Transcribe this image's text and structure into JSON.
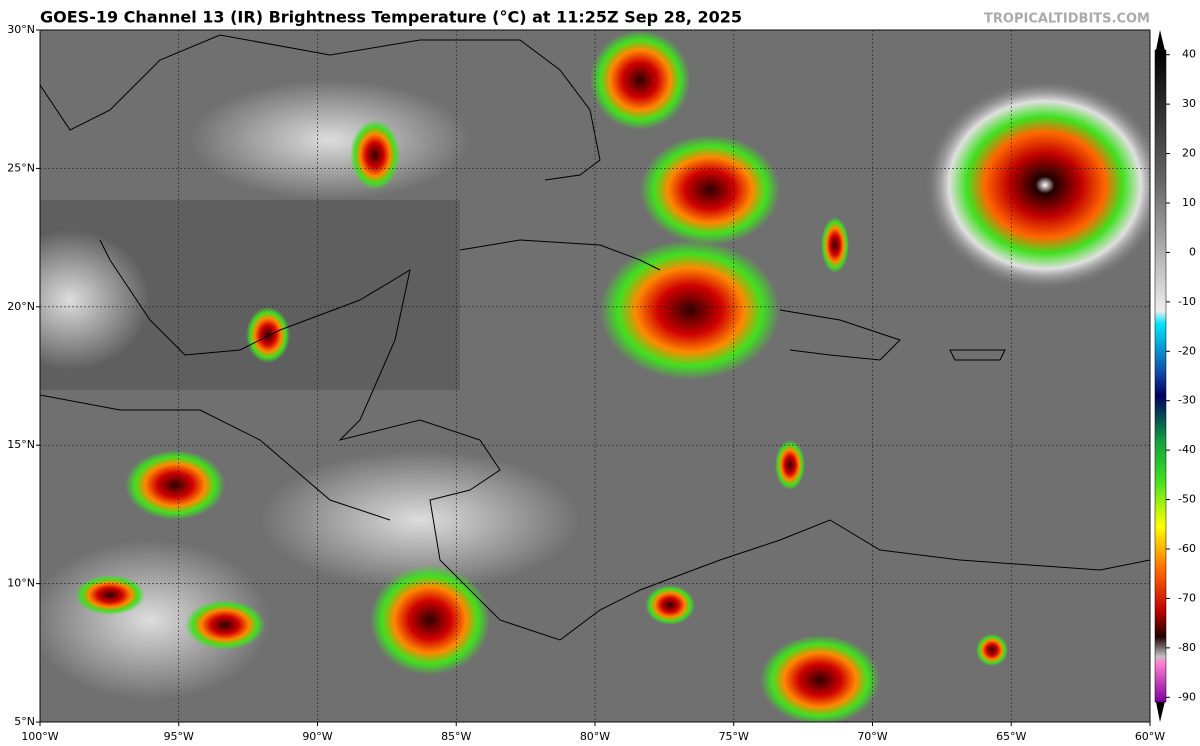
{
  "map": {
    "title": "GOES-19 Channel 13 (IR) Brightness Temperature (°C) at 11:25Z Sep 28, 2025",
    "watermark": "TROPICALTIDBITS.COM",
    "xlim": [
      -100,
      -60
    ],
    "ylim": [
      5,
      30
    ],
    "xticks": [
      {
        "value": -100,
        "label": "100°W"
      },
      {
        "value": -95,
        "label": "95°W"
      },
      {
        "value": -90,
        "label": "90°W"
      },
      {
        "value": -85,
        "label": "85°W"
      },
      {
        "value": -80,
        "label": "80°W"
      },
      {
        "value": -75,
        "label": "75°W"
      },
      {
        "value": -70,
        "label": "70°W"
      },
      {
        "value": -65,
        "label": "65°W"
      },
      {
        "value": -60,
        "label": "60°W"
      }
    ],
    "yticks": [
      {
        "value": 5,
        "label": "5°N"
      },
      {
        "value": 10,
        "label": "10°N"
      },
      {
        "value": 15,
        "label": "15°N"
      },
      {
        "value": 20,
        "label": "20°N"
      },
      {
        "value": 25,
        "label": "25°N"
      },
      {
        "value": 30,
        "label": "30°N"
      }
    ],
    "grid": true,
    "colorbar": {
      "lim": [
        -95,
        45
      ],
      "ticks": [
        40,
        30,
        20,
        10,
        0,
        -10,
        -20,
        -30,
        -40,
        -50,
        -60,
        -70,
        -80,
        -90
      ]
    }
  }
}
